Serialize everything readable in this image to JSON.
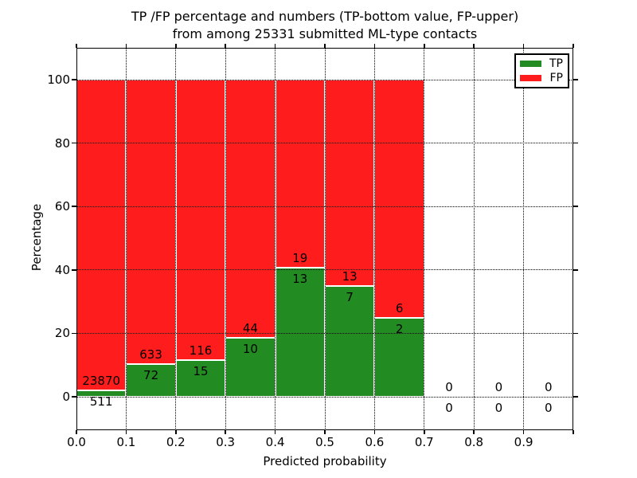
{
  "title": {
    "line1": "TP /FP percentage and numbers (TP-bottom value, FP-upper)",
    "line2": "from among 25331 submitted ML-type contacts"
  },
  "chart_data": {
    "type": "bar",
    "subtype": "stacked-100-percent",
    "title": "TP /FP percentage and numbers (TP-bottom value, FP-upper) from among 25331 submitted ML-type contacts",
    "xlabel": "Predicted probability",
    "ylabel": "Percentage",
    "total_contacts": 25331,
    "bin_width": 0.1,
    "bin_starts": [
      0.0,
      0.1,
      0.2,
      0.3,
      0.4,
      0.5,
      0.6,
      0.7,
      0.8,
      0.9
    ],
    "x_tick_labels": [
      "0.0",
      "0.1",
      "0.2",
      "0.3",
      "0.4",
      "0.5",
      "0.6",
      "0.7",
      "0.8",
      "0.9"
    ],
    "y_ticks": [
      0,
      20,
      40,
      60,
      80,
      100
    ],
    "xlim": [
      0.0,
      1.0
    ],
    "ylim": [
      -10.6,
      110.1
    ],
    "grid": "dotted both axes, drawn over bars",
    "series": [
      {
        "name": "TP",
        "color": "#228B22",
        "counts": [
          511,
          72,
          15,
          10,
          13,
          7,
          2,
          0,
          0,
          0
        ]
      },
      {
        "name": "FP",
        "color": "#FF1C1C",
        "counts": [
          23870,
          633,
          116,
          44,
          19,
          13,
          6,
          0,
          0,
          0
        ]
      }
    ],
    "bar_label_rule": "FP count printed above TP/FP boundary, TP count below it",
    "legend": {
      "position": "upper-right",
      "entries": [
        {
          "label": "TP",
          "color": "#228B22"
        },
        {
          "label": "FP",
          "color": "#FF1C1C"
        }
      ]
    }
  }
}
